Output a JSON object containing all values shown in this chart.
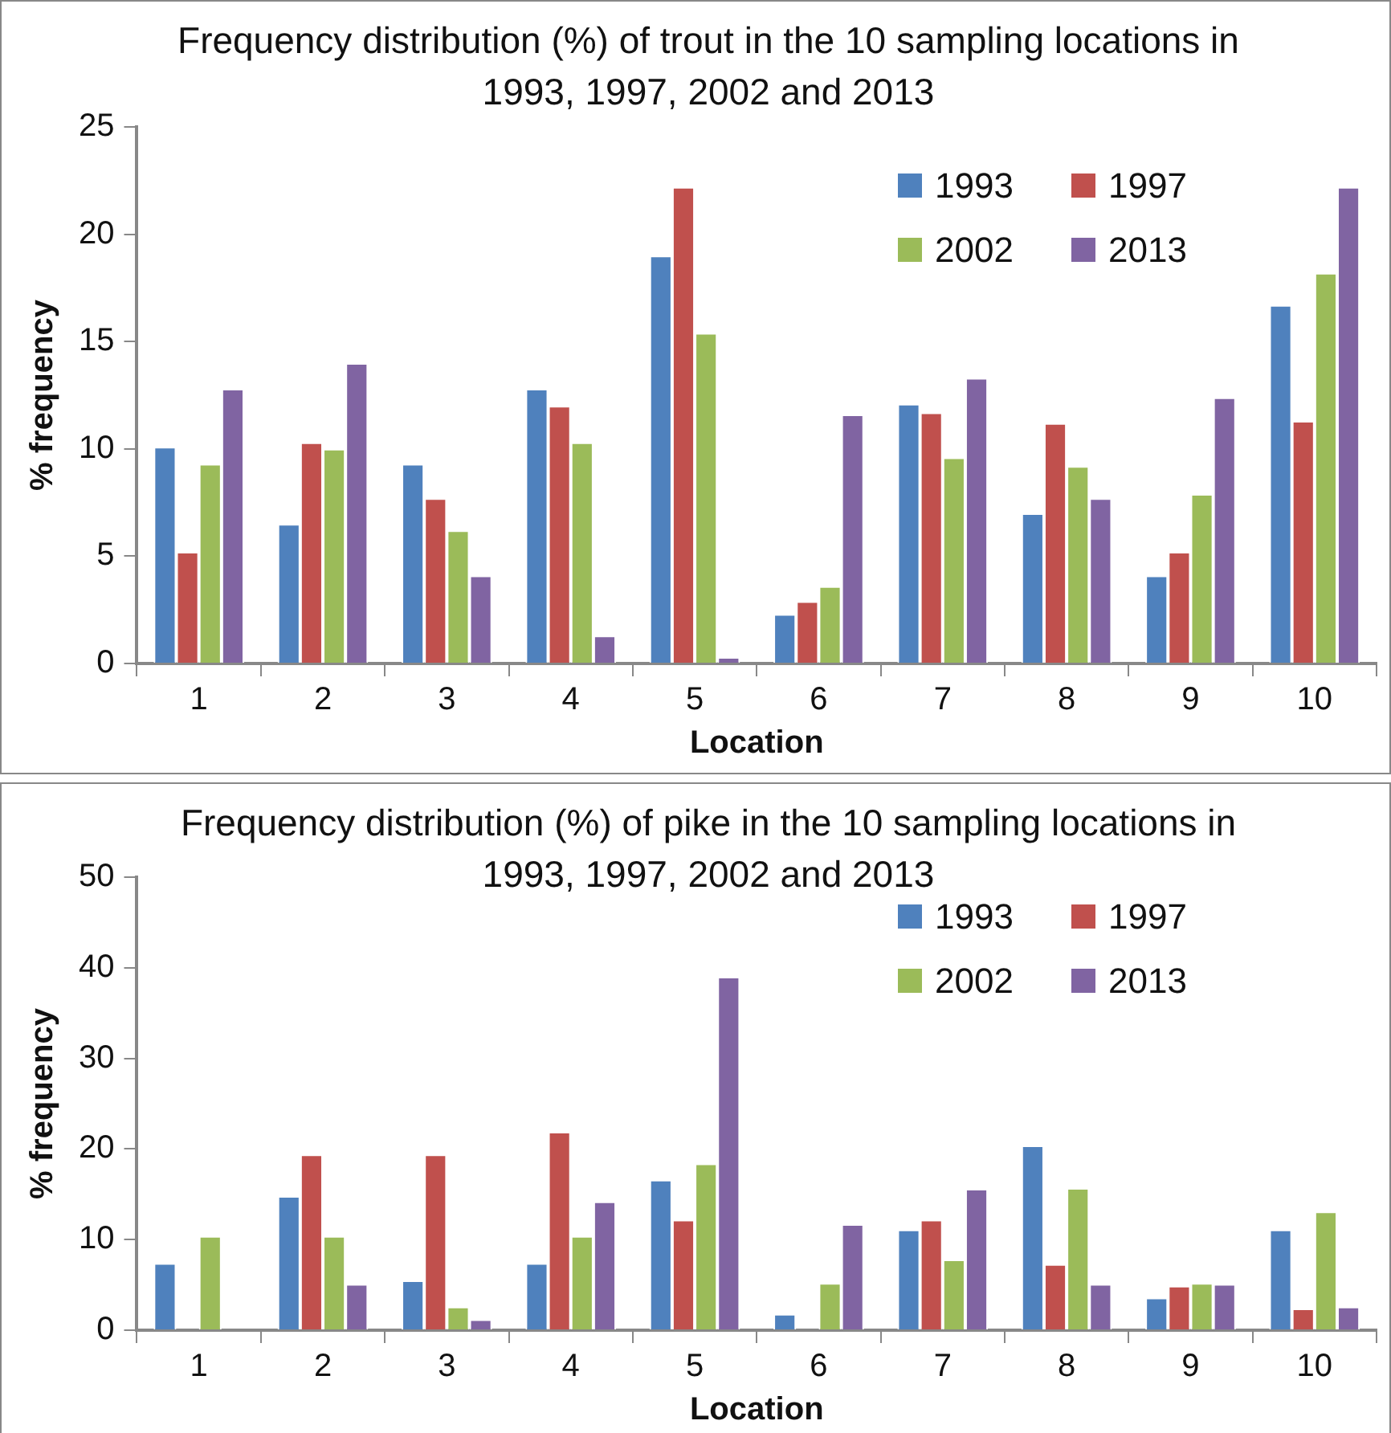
{
  "chart_data": [
    {
      "type": "bar",
      "title": "Frequency distribution (%) of  trout in the 10 sampling locations in 1993, 1997, 2002 and 2013",
      "xlabel": "Location",
      "ylabel": "% frequency",
      "categories": [
        "1",
        "2",
        "3",
        "4",
        "5",
        "6",
        "7",
        "8",
        "9",
        "10"
      ],
      "series": [
        {
          "name": "1993",
          "color": "#4f81bd",
          "values": [
            10.1,
            6.5,
            9.3,
            12.8,
            19.0,
            2.3,
            12.1,
            7.0,
            4.1,
            16.7
          ]
        },
        {
          "name": "1997",
          "color": "#c0504d",
          "values": [
            5.2,
            10.3,
            7.7,
            12.0,
            22.2,
            2.9,
            11.7,
            11.2,
            5.2,
            11.3
          ]
        },
        {
          "name": "2002",
          "color": "#9bbb59",
          "values": [
            9.3,
            10.0,
            6.2,
            10.3,
            15.4,
            3.6,
            9.6,
            9.2,
            7.9,
            18.2
          ]
        },
        {
          "name": "2013",
          "color": "#8064a2",
          "values": [
            12.8,
            14.0,
            4.1,
            1.3,
            0.3,
            11.6,
            13.3,
            7.7,
            12.4,
            22.2
          ]
        }
      ],
      "ylim": [
        0,
        25
      ],
      "yticks": [
        0,
        5,
        10,
        15,
        20,
        25
      ],
      "grid": false,
      "legend": "top right"
    },
    {
      "type": "bar",
      "title": "Frequency distribution (%) of  pike in the 10 sampling locations in 1993, 1997, 2002 and 2013",
      "xlabel": "Location",
      "ylabel": "% frequency",
      "categories": [
        "1",
        "2",
        "3",
        "4",
        "5",
        "6",
        "7",
        "8",
        "9",
        "10"
      ],
      "series": [
        {
          "name": "1993",
          "color": "#4f81bd",
          "values": [
            7.4,
            14.8,
            5.5,
            7.4,
            16.6,
            1.8,
            11.1,
            20.4,
            3.6,
            11.1
          ]
        },
        {
          "name": "1997",
          "color": "#c0504d",
          "values": [
            0,
            19.4,
            19.4,
            21.9,
            12.2,
            0,
            12.2,
            7.3,
            4.9,
            2.4
          ]
        },
        {
          "name": "2002",
          "color": "#9bbb59",
          "values": [
            10.4,
            10.4,
            2.6,
            10.4,
            18.4,
            5.2,
            7.8,
            15.7,
            5.2,
            13.1
          ]
        },
        {
          "name": "2013",
          "color": "#8064a2",
          "values": [
            0,
            5.1,
            1.2,
            14.2,
            39.0,
            11.7,
            15.6,
            5.1,
            5.1,
            2.6
          ]
        }
      ],
      "ylim": [
        0,
        50
      ],
      "yticks": [
        0,
        10,
        20,
        30,
        40,
        50
      ],
      "grid": false,
      "legend": "top right"
    }
  ]
}
